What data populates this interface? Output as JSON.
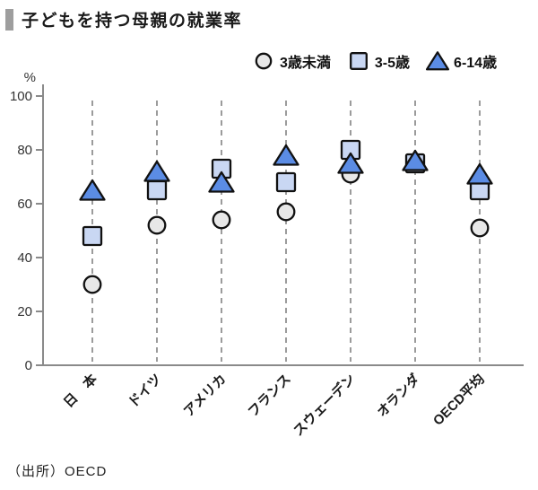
{
  "header": {
    "title": "子どもを持つ母親の就業率"
  },
  "source": {
    "text": "（出所）OECD"
  },
  "chart_data": {
    "type": "scatter",
    "title": "子どもを持つ母親の就業率",
    "ylabel": "%",
    "ylim": [
      0,
      100
    ],
    "yticks": [
      0,
      20,
      40,
      60,
      80,
      100
    ],
    "grid": "vertical-dashed",
    "legend_position": "top-right",
    "categories": [
      "日　本",
      "ドイツ",
      "アメリカ",
      "フランス",
      "スウェーデン",
      "オランダ",
      "OECD平均"
    ],
    "series": [
      {
        "name": "3歳未満",
        "marker": "circle",
        "color": "#e8e8e8",
        "outline": "#111111",
        "values": [
          30,
          52,
          54,
          57,
          71,
          75,
          51
        ]
      },
      {
        "name": "3-5歳",
        "marker": "square",
        "color": "#c9d7f3",
        "outline": "#111111",
        "values": [
          48,
          65,
          73,
          68,
          80,
          75,
          65
        ]
      },
      {
        "name": "6-14歳",
        "marker": "triangle",
        "color": "#5b8ce4",
        "outline": "#111111",
        "values": [
          65,
          72,
          68,
          78,
          75,
          76,
          71
        ]
      }
    ],
    "axis_color": "#8a8a8a",
    "gridline_color": "#9b9b9b",
    "tick_label_color": "#333333",
    "category_label_color": "#1a1a1a"
  }
}
